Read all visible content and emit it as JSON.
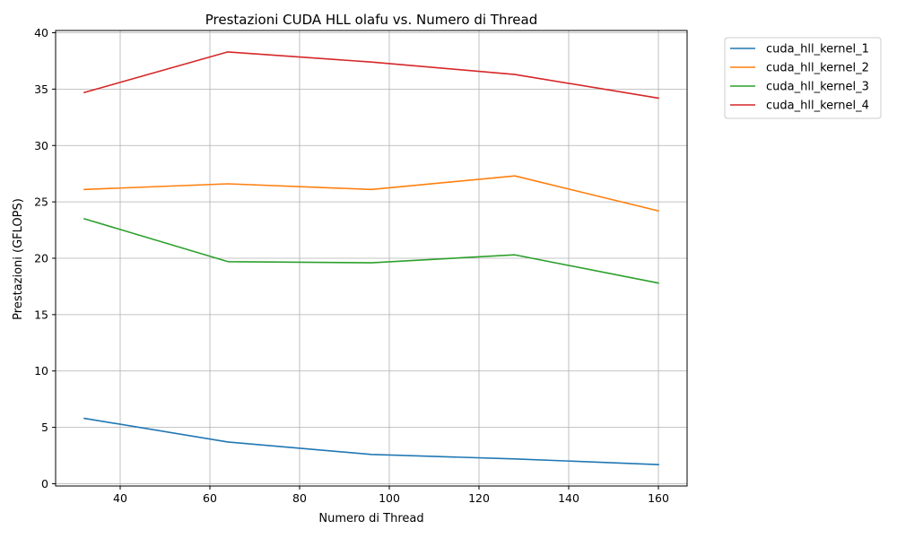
{
  "chart_data": {
    "type": "line",
    "title": "Prestazioni CUDA HLL olafu vs. Numero di Thread",
    "xlabel": "Numero di Thread",
    "ylabel": "Prestazioni (GFLOPS)",
    "x": [
      32,
      64,
      96,
      128,
      160
    ],
    "xlim": [
      25.6,
      166.4
    ],
    "ylim": [
      -0.2,
      40.2
    ],
    "xticks": [
      40,
      60,
      80,
      100,
      120,
      140,
      160
    ],
    "yticks": [
      0,
      5,
      10,
      15,
      20,
      25,
      30,
      35,
      40
    ],
    "grid": true,
    "legend_position": "outside-top-right",
    "series": [
      {
        "name": "cuda_hll_kernel_1",
        "color": "#1f77b4",
        "values": [
          5.8,
          3.7,
          2.6,
          2.2,
          1.7
        ]
      },
      {
        "name": "cuda_hll_kernel_2",
        "color": "#ff7f0e",
        "values": [
          26.1,
          26.6,
          26.1,
          27.3,
          24.2
        ]
      },
      {
        "name": "cuda_hll_kernel_3",
        "color": "#2ca02c",
        "values": [
          23.5,
          19.7,
          19.6,
          20.3,
          17.8
        ]
      },
      {
        "name": "cuda_hll_kernel_4",
        "color": "#d62728",
        "values": [
          34.7,
          38.3,
          37.4,
          36.3,
          34.2
        ]
      }
    ]
  }
}
